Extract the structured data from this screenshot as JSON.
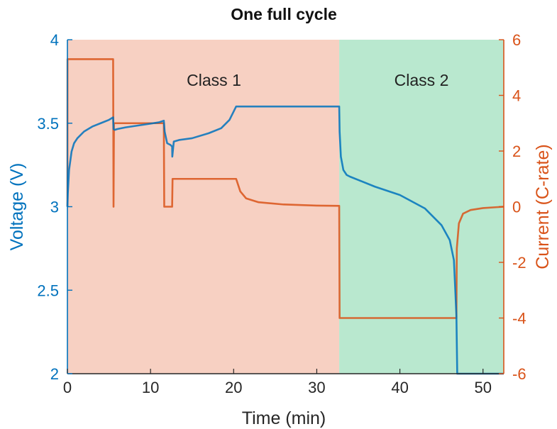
{
  "chart_data": {
    "type": "line",
    "title": "One full cycle",
    "xlabel": "Time (min)",
    "ylabel_left": "Voltage (V)",
    "ylabel_right": "Current (C-rate)",
    "xlim": [
      0,
      52.5
    ],
    "ylim_left": [
      2,
      4
    ],
    "ylim_right": [
      -6,
      6
    ],
    "x_ticks": [
      0,
      10,
      20,
      30,
      40,
      50
    ],
    "y_left_ticks": [
      2,
      2.5,
      3,
      3.5,
      4
    ],
    "y_left_tick_labels": [
      "2",
      "2.5",
      "3",
      "3.5",
      "4"
    ],
    "y_right_ticks": [
      -6,
      -4,
      -2,
      0,
      2,
      4,
      6
    ],
    "grid": false,
    "colors": {
      "voltage": "#0072BD",
      "current": "#D95319",
      "class1_bg": "#F7D0C2",
      "class2_bg": "#B9E8CF"
    },
    "regions": [
      {
        "label": "Class 1",
        "x_start": 0,
        "x_end": 32.7,
        "color": "#F7D0C2"
      },
      {
        "label": "Class 2",
        "x_start": 32.7,
        "x_end": 52.5,
        "color": "#B9E8CF"
      }
    ],
    "series": [
      {
        "name": "Voltage",
        "axis": "left",
        "color": "#0072BD",
        "x": [
          0,
          0.05,
          0.2,
          0.5,
          0.8,
          1.2,
          2.0,
          3.0,
          4.0,
          5.0,
          5.5,
          5.55,
          5.7,
          6.0,
          7.0,
          9.0,
          11.0,
          11.6,
          11.7,
          12.0,
          12.4,
          12.6,
          12.62,
          12.7,
          12.8,
          13.5,
          15.0,
          17.0,
          18.5,
          19.5,
          20.3,
          21.0,
          25.0,
          30.0,
          32.7,
          32.75,
          32.9,
          33.2,
          33.6,
          34.0,
          35.0,
          37.0,
          40.0,
          43.0,
          45.0,
          46.0,
          46.5,
          46.8,
          46.9,
          47.5,
          52.5
        ],
        "y": [
          3.0,
          3.08,
          3.22,
          3.33,
          3.38,
          3.41,
          3.45,
          3.48,
          3.5,
          3.52,
          3.535,
          3.465,
          3.46,
          3.465,
          3.475,
          3.49,
          3.505,
          3.515,
          3.45,
          3.38,
          3.37,
          3.36,
          3.3,
          3.34,
          3.39,
          3.4,
          3.41,
          3.44,
          3.47,
          3.52,
          3.6,
          3.6,
          3.6,
          3.6,
          3.6,
          3.45,
          3.3,
          3.22,
          3.19,
          3.18,
          3.16,
          3.12,
          3.07,
          2.99,
          2.89,
          2.8,
          2.68,
          2.35,
          2.0,
          2.0,
          2.0
        ]
      },
      {
        "name": "Current",
        "axis": "right",
        "color": "#D95319",
        "x": [
          0,
          0.01,
          5.5,
          5.55,
          5.6,
          11.6,
          11.65,
          12.6,
          12.65,
          20.3,
          20.8,
          21.5,
          23.0,
          26.0,
          30.0,
          32.7,
          32.75,
          46.8,
          46.85,
          47.1,
          47.6,
          48.5,
          50.0,
          52.5
        ],
        "y": [
          0,
          5.3,
          5.3,
          0,
          3.0,
          3.0,
          0,
          0,
          1.0,
          1.0,
          0.55,
          0.3,
          0.16,
          0.08,
          0.04,
          0.03,
          -4.0,
          -4.0,
          -1.5,
          -0.6,
          -0.25,
          -0.12,
          -0.05,
          0
        ]
      }
    ]
  }
}
